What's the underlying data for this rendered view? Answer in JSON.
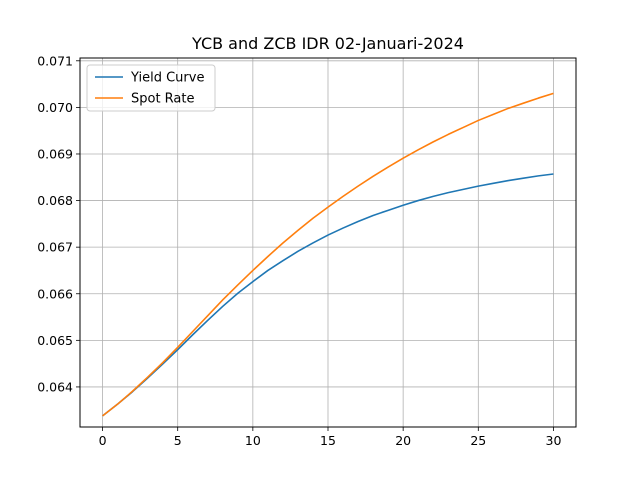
{
  "chart_data": {
    "type": "line",
    "title": "YCB and ZCB IDR 02-Januari-2024",
    "xlabel": "",
    "ylabel": "",
    "xlim": [
      -1.5,
      31.5
    ],
    "ylim": [
      0.06314,
      0.07106
    ],
    "xticks": [
      0,
      5,
      10,
      15,
      20,
      25,
      30
    ],
    "yticks": [
      0.064,
      0.065,
      0.066,
      0.067,
      0.068,
      0.069,
      0.07,
      0.071
    ],
    "grid": true,
    "legend_position": "top-left",
    "x": [
      0,
      1,
      2,
      3,
      4,
      5,
      6,
      7,
      8,
      9,
      10,
      11,
      12,
      13,
      14,
      15,
      16,
      17,
      18,
      19,
      20,
      21,
      22,
      23,
      24,
      25,
      26,
      27,
      28,
      29,
      30
    ],
    "series": [
      {
        "name": "Yield Curve",
        "color": "#1f77b4",
        "values": [
          0.06338,
          0.06363,
          0.0639,
          0.06419,
          0.06449,
          0.0648,
          0.06512,
          0.06543,
          0.06573,
          0.06601,
          0.06626,
          0.0665,
          0.06671,
          0.06691,
          0.06709,
          0.06726,
          0.06741,
          0.06755,
          0.06768,
          0.06779,
          0.0679,
          0.068,
          0.06809,
          0.06817,
          0.06824,
          0.06831,
          0.06837,
          0.06843,
          0.06848,
          0.06853,
          0.06857
        ]
      },
      {
        "name": "Spot Rate",
        "color": "#ff7f0e",
        "values": [
          0.06338,
          0.06363,
          0.06391,
          0.06421,
          0.06452,
          0.06485,
          0.06519,
          0.06553,
          0.06587,
          0.06619,
          0.0665,
          0.0668,
          0.06709,
          0.06736,
          0.06762,
          0.06786,
          0.06809,
          0.06831,
          0.06852,
          0.06872,
          0.06891,
          0.06909,
          0.06926,
          0.06942,
          0.06957,
          0.06972,
          0.06985,
          0.06998,
          0.07009,
          0.0702,
          0.0703
        ]
      }
    ]
  }
}
